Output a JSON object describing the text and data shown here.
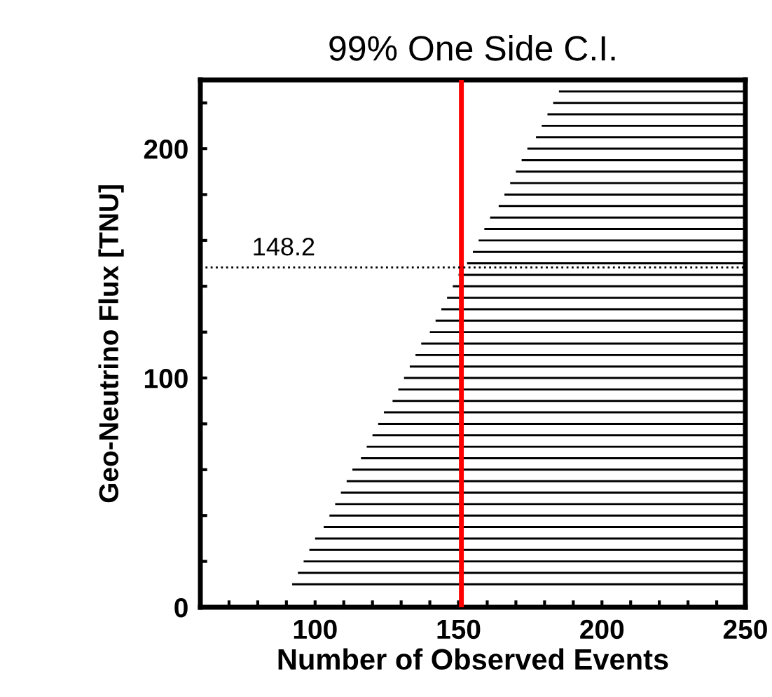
{
  "chart_data": {
    "type": "bar",
    "orientation": "horizontal",
    "title": "99% One Side C.I.",
    "xlabel": "Number of Observed Events",
    "ylabel": "Geo-Neutrino Flux [TNU]",
    "x": [
      10,
      15,
      20,
      25,
      30,
      35,
      40,
      45,
      50,
      55,
      60,
      65,
      70,
      75,
      80,
      85,
      90,
      95,
      100,
      105,
      110,
      115,
      120,
      125,
      130,
      135,
      140,
      145,
      150,
      155,
      160,
      165,
      170,
      175,
      180,
      185,
      190,
      195,
      200,
      205,
      210,
      215,
      220,
      225
    ],
    "base": [
      92,
      94,
      96,
      98,
      100,
      103,
      105,
      107,
      109,
      111,
      113,
      116,
      118,
      120,
      122,
      124,
      127,
      129,
      131,
      133,
      135,
      137,
      140,
      142,
      144,
      146,
      148,
      150,
      153,
      155,
      157,
      159,
      161,
      164,
      166,
      168,
      170,
      172,
      174,
      177,
      179,
      181,
      183,
      185
    ],
    "values": [
      158,
      156,
      154,
      152,
      150,
      147,
      145,
      143,
      141,
      139,
      137,
      134,
      132,
      130,
      128,
      126,
      123,
      121,
      119,
      117,
      115,
      113,
      110,
      108,
      106,
      104,
      102,
      100,
      97,
      95,
      93,
      91,
      89,
      86,
      84,
      82,
      80,
      78,
      76,
      73,
      71,
      69,
      67,
      65
    ],
    "color": "#000000",
    "xlim": [
      60,
      250
    ],
    "xticks": [
      {
        "value": 70,
        "label": null
      },
      {
        "value": 80,
        "label": null
      },
      {
        "value": 90,
        "label": null
      },
      100,
      {
        "value": 110,
        "label": null
      },
      {
        "value": 120,
        "label": null
      },
      {
        "value": 130,
        "label": null
      },
      {
        "value": 140,
        "label": null
      },
      150,
      {
        "value": 160,
        "label": null
      },
      {
        "value": 170,
        "label": null
      },
      {
        "value": 180,
        "label": null
      },
      {
        "value": 190,
        "label": null
      },
      200,
      {
        "value": 210,
        "label": null
      },
      {
        "value": 220,
        "label": null
      },
      {
        "value": 230,
        "label": null
      },
      {
        "value": 240,
        "label": null
      },
      250
    ],
    "ylim": [
      0,
      230
    ],
    "yticks": [
      0,
      {
        "value": 20,
        "label": null
      },
      {
        "value": 40,
        "label": null
      },
      {
        "value": 60,
        "label": null
      },
      {
        "value": 80,
        "label": null
      },
      100,
      {
        "value": 120,
        "label": null
      },
      {
        "value": 140,
        "label": null
      },
      {
        "value": 160,
        "label": null
      },
      {
        "value": 180,
        "label": null
      },
      200,
      {
        "value": 220,
        "label": null
      }
    ],
    "ref_lines": [
      {
        "axis": "x",
        "value": 151,
        "color": "#ff0000",
        "line_style": "solid"
      },
      {
        "axis": "y",
        "value": 148.2,
        "label": "148.2",
        "color": "#000000",
        "line_style": "dotted"
      }
    ],
    "grid": false,
    "legend": false
  }
}
